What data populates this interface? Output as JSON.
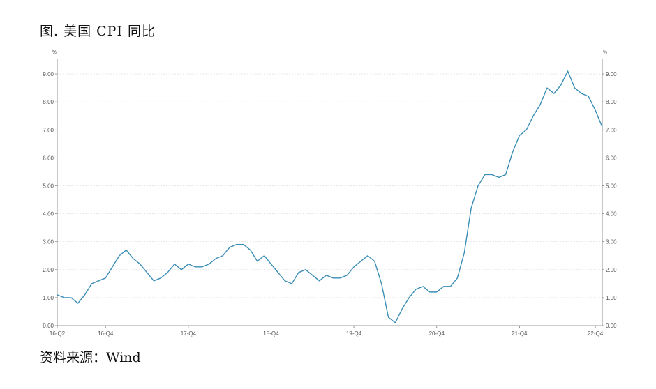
{
  "title": "图. 美国 CPI 同比",
  "source": "资料来源：Wind",
  "chart_data": {
    "type": "line",
    "title": "图. 美国 CPI 同比",
    "unit_left": "%",
    "unit_right": "%",
    "ylim": [
      0,
      9.5
    ],
    "y_ticks": [
      "0.00",
      "1.00",
      "2.00",
      "3.00",
      "4.00",
      "5.00",
      "6.00",
      "7.00",
      "8.00",
      "9.00"
    ],
    "x_tick_labels": [
      "16-Q2",
      "16-Q4",
      "17-Q4",
      "18-Q4",
      "19-Q4",
      "20-Q4",
      "21-Q4",
      "22-Q4"
    ],
    "x_tick_indices": [
      0,
      7,
      19,
      31,
      43,
      55,
      67,
      78
    ],
    "grid": true,
    "line_color": "#3a8db5",
    "series": [
      {
        "values": [
          1.1,
          1.0,
          1.0,
          0.8,
          1.1,
          1.5,
          1.6,
          1.7,
          2.1,
          2.5,
          2.7,
          2.4,
          2.2,
          1.9,
          1.6,
          1.7,
          1.9,
          2.2,
          2.0,
          2.2,
          2.1,
          2.1,
          2.2,
          2.4,
          2.5,
          2.8,
          2.9,
          2.9,
          2.7,
          2.3,
          2.5,
          2.2,
          1.9,
          1.6,
          1.5,
          1.9,
          2.0,
          1.8,
          1.6,
          1.8,
          1.7,
          1.7,
          1.8,
          2.1,
          2.3,
          2.5,
          2.3,
          1.5,
          0.3,
          0.1,
          0.6,
          1.0,
          1.3,
          1.4,
          1.2,
          1.2,
          1.4,
          1.4,
          1.7,
          2.6,
          4.2,
          5.0,
          5.4,
          5.4,
          5.3,
          5.4,
          6.2,
          6.8,
          7.0,
          7.5,
          7.9,
          8.5,
          8.3,
          8.6,
          9.1,
          8.5,
          8.3,
          8.2,
          7.7,
          7.1
        ]
      }
    ]
  }
}
